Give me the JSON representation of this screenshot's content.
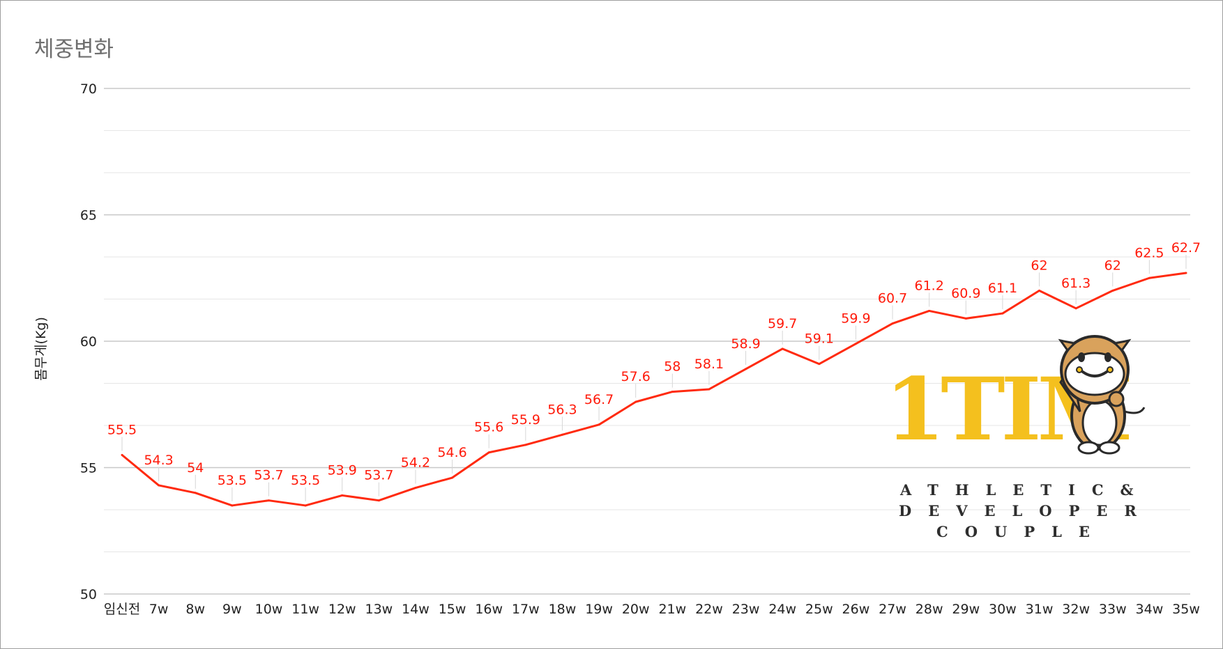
{
  "chart_data": {
    "type": "line",
    "title": "체중변화",
    "ylabel": "몸무게(Kg)",
    "xlabel": "",
    "ylim": [
      50,
      70
    ],
    "yticks": [
      50,
      55,
      60,
      65,
      70
    ],
    "grid": true,
    "categories": [
      "임신전",
      "7w",
      "8w",
      "9w",
      "10w",
      "11w",
      "12w",
      "13w",
      "14w",
      "15w",
      "16w",
      "17w",
      "18w",
      "19w",
      "20w",
      "21w",
      "22w",
      "23w",
      "24w",
      "25w",
      "26w",
      "27w",
      "28w",
      "29w",
      "30w",
      "31w",
      "32w",
      "33w",
      "34w",
      "35w"
    ],
    "series": [
      {
        "values": [
          55.5,
          54.3,
          54,
          53.5,
          53.7,
          53.5,
          53.9,
          53.7,
          54.2,
          54.6,
          55.6,
          55.9,
          56.3,
          56.7,
          57.6,
          58,
          58.1,
          58.9,
          59.7,
          59.1,
          59.9,
          60.7,
          61.2,
          60.9,
          61.1,
          62,
          61.3,
          62,
          62.5,
          62.7
        ],
        "color": "#ff2a0f"
      }
    ],
    "data_labels": [
      "55.5",
      "54.3",
      "54",
      "53.5",
      "53.7",
      "53.5",
      "53.9",
      "53.7",
      "54.2",
      "54.6",
      "55.6",
      "55.9",
      "56.3",
      "56.7",
      "57.6",
      "58",
      "58.1",
      "58.9",
      "59.7",
      "59.1",
      "59.9",
      "60.7",
      "61.2",
      "60.9",
      "61.1",
      "62",
      "61.3",
      "62",
      "62.5",
      "62.7"
    ]
  },
  "watermark": {
    "logo": "1TIM",
    "tagline": [
      "ATHLETIC&",
      "DEVELOPER",
      "COUPLE"
    ],
    "colors": {
      "gold": "#f4c01e",
      "cow": "#d9a25c",
      "text": "#2e2e2e"
    }
  }
}
